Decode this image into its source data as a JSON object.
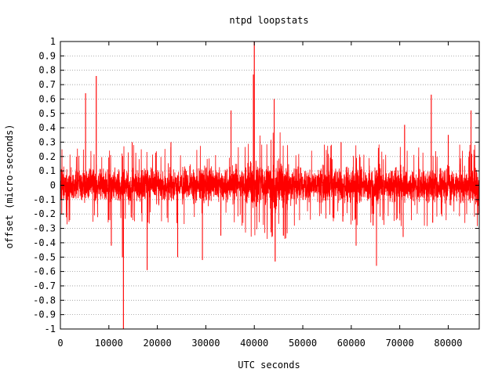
{
  "chart_data": {
    "type": "line",
    "title": "ntpd loopstats",
    "xlabel": "UTC seconds",
    "ylabel": "offset (micro-seconds)",
    "xlim": [
      0,
      86400
    ],
    "ylim": [
      -1,
      1
    ],
    "x_ticks": [
      0,
      10000,
      20000,
      30000,
      40000,
      50000,
      60000,
      70000,
      80000
    ],
    "x_tick_labels": [
      "0",
      "10000",
      "20000",
      "30000",
      "40000",
      "50000",
      "60000",
      "70000",
      "80000"
    ],
    "y_ticks": [
      -1,
      -0.9,
      -0.8,
      -0.7,
      -0.6,
      -0.5,
      -0.4,
      -0.3,
      -0.2,
      -0.1,
      0,
      0.1,
      0.2,
      0.3,
      0.4,
      0.5,
      0.6,
      0.7,
      0.8,
      0.9,
      1
    ],
    "y_tick_labels": [
      "-1",
      "-0.9",
      "-0.8",
      "-0.7",
      "-0.6",
      "-0.5",
      "-0.4",
      "-0.3",
      "-0.2",
      "-0.1",
      "0",
      "0.1",
      "0.2",
      "0.3",
      "0.4",
      "0.5",
      "0.6",
      "0.7",
      "0.8",
      "0.9",
      "1"
    ],
    "grid": {
      "horizontal": true,
      "vertical": false,
      "style": "dotted"
    },
    "series_color": "#ff0000",
    "noise_band": {
      "typical_min": -0.15,
      "typical_max": 0.15
    },
    "spikes": [
      {
        "x": 5200,
        "y": 0.64
      },
      {
        "x": 7400,
        "y": 0.76
      },
      {
        "x": 10500,
        "y": -0.42
      },
      {
        "x": 12800,
        "y": -0.5
      },
      {
        "x": 13000,
        "y": -1.0
      },
      {
        "x": 14800,
        "y": 0.3
      },
      {
        "x": 17900,
        "y": -0.59
      },
      {
        "x": 22800,
        "y": 0.3
      },
      {
        "x": 24200,
        "y": -0.5
      },
      {
        "x": 29300,
        "y": -0.52
      },
      {
        "x": 33100,
        "y": -0.35
      },
      {
        "x": 35200,
        "y": 0.52
      },
      {
        "x": 39800,
        "y": 0.77
      },
      {
        "x": 40000,
        "y": 1.0
      },
      {
        "x": 44100,
        "y": 0.6
      },
      {
        "x": 44300,
        "y": -0.53
      },
      {
        "x": 46000,
        "y": -0.35
      },
      {
        "x": 57900,
        "y": 0.3
      },
      {
        "x": 61000,
        "y": -0.42
      },
      {
        "x": 64500,
        "y": -0.28
      },
      {
        "x": 65200,
        "y": -0.56
      },
      {
        "x": 70700,
        "y": -0.36
      },
      {
        "x": 71000,
        "y": 0.42
      },
      {
        "x": 76500,
        "y": 0.63
      },
      {
        "x": 76800,
        "y": -0.26
      },
      {
        "x": 80000,
        "y": 0.35
      },
      {
        "x": 84700,
        "y": 0.52
      }
    ]
  }
}
